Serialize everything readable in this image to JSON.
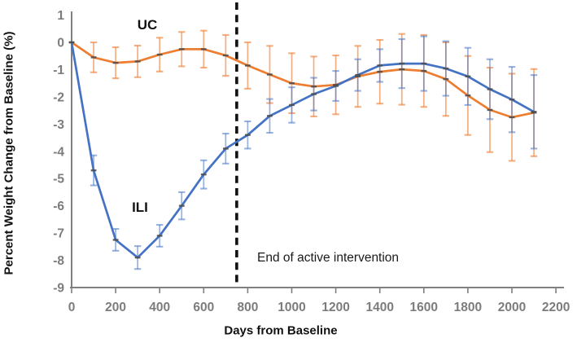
{
  "figure": {
    "y_axis_title": "Percent Weight Change from Baseline (%)",
    "x_axis_title": "Days from Baseline",
    "annotation_text": "End of active intervention",
    "uc_label": "UC",
    "ili_label": "ILI"
  },
  "chart_data": {
    "type": "line",
    "title": "",
    "xlabel": "Days from Baseline",
    "ylabel": "Percent Weight Change from Baseline (%)",
    "x": [
      0,
      100,
      200,
      300,
      400,
      500,
      600,
      700,
      800,
      900,
      1000,
      1100,
      1200,
      1300,
      1400,
      1500,
      1600,
      1700,
      1800,
      1900,
      2000,
      2100
    ],
    "x_ticks": [
      0,
      200,
      400,
      600,
      800,
      1000,
      1200,
      1400,
      1600,
      1800,
      2000,
      2200
    ],
    "y_ticks": [
      1,
      0,
      -1,
      -2,
      -3,
      -4,
      -5,
      -6,
      -7,
      -8,
      -9
    ],
    "xlim": [
      0,
      2200
    ],
    "ylim": [
      -9,
      1
    ],
    "grid": false,
    "legend_position": "inline-labels",
    "annotation": {
      "text": "End of active intervention",
      "line_style": "dashed-vertical",
      "x_day": 750
    },
    "series": [
      {
        "name": "UC",
        "color": "#ED7D31",
        "error_color": "rgba(237,125,49,0.62)",
        "values": [
          0,
          -0.55,
          -0.75,
          -0.7,
          -0.45,
          -0.25,
          -0.25,
          -0.48,
          -0.85,
          -1.18,
          -1.5,
          -1.62,
          -1.56,
          -1.25,
          -1.08,
          -0.99,
          -1.05,
          -1.35,
          -1.95,
          -2.48,
          -2.75,
          -2.58
        ],
        "errors": [
          null,
          0.55,
          0.57,
          0.58,
          0.62,
          0.63,
          0.68,
          0.75,
          0.85,
          1.05,
          1.1,
          1.1,
          1.08,
          1.12,
          1.17,
          1.3,
          1.32,
          1.35,
          1.45,
          1.55,
          1.6,
          1.6
        ]
      },
      {
        "name": "ILI",
        "color": "#4472C4",
        "error_color": "rgba(68,114,196,0.55)",
        "values": [
          0,
          -4.7,
          -7.25,
          -7.9,
          -7.1,
          -6.0,
          -4.85,
          -3.9,
          -3.4,
          -2.7,
          -2.3,
          -1.9,
          -1.6,
          -1.2,
          -0.85,
          -0.78,
          -0.78,
          -0.96,
          -1.25,
          -1.72,
          -2.1,
          -2.55
        ],
        "errors": [
          null,
          0.55,
          0.4,
          0.42,
          0.4,
          0.5,
          0.52,
          0.55,
          0.5,
          0.62,
          0.65,
          0.6,
          0.55,
          0.58,
          0.6,
          0.9,
          1.0,
          1.0,
          1.05,
          1.1,
          1.2,
          1.35
        ]
      }
    ],
    "style": {
      "axis_color": "#808080",
      "tick_label_color": "#7c7c7c",
      "marker_color": "#4d4d4d",
      "dashed_line_color": "#111111"
    }
  }
}
